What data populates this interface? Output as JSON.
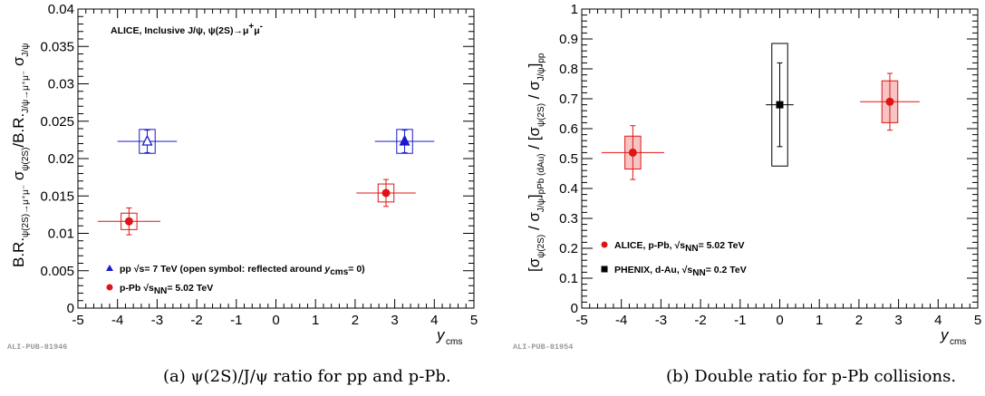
{
  "chart_data": [
    {
      "type": "scatter",
      "title": "ALICE, Inclusive J/ψ, ψ(2S)→μ⁺μ⁻",
      "ylabel": "B.R.ψ(2S)→μ⁺μ⁻ σψ(2S) / B.R.J/ψ→μ⁺μ⁻ σJ/ψ",
      "xlabel": "ycms",
      "xlim": [
        -5,
        5
      ],
      "ylim": [
        0,
        0.04
      ],
      "xticks": [
        "-5",
        "-4",
        "-3",
        "-2",
        "-1",
        "0",
        "1",
        "2",
        "3",
        "4",
        "5"
      ],
      "yticks": [
        "0",
        "0.005",
        "0.01",
        "0.015",
        "0.02",
        "0.025",
        "0.03",
        "0.035",
        "0.04"
      ],
      "series": [
        {
          "name": "pp √s= 7 TeV (open symbol: reflected around ycms= 0)",
          "color": "#1a1acc",
          "marker": "triangle",
          "points": [
            {
              "x": -3.25,
              "y": 0.0223,
              "xerr": 0.75,
              "stat": 0.0015,
              "sys": 0.0016,
              "open": true
            },
            {
              "x": 3.25,
              "y": 0.0223,
              "xerr": 0.75,
              "stat": 0.0015,
              "sys": 0.0016,
              "open": false
            }
          ]
        },
        {
          "name": "p-Pb √sNN= 5.02 TeV",
          "color": "#e01414",
          "marker": "circle",
          "points": [
            {
              "x": -3.71,
              "y": 0.0116,
              "xerr": 0.79,
              "stat": 0.0018,
              "sys": 0.0011,
              "open": false
            },
            {
              "x": 2.78,
              "y": 0.0154,
              "xerr": 0.75,
              "stat": 0.0018,
              "sys": 0.0012,
              "open": false
            }
          ]
        }
      ],
      "legend_position": "bottom-left",
      "tag": "ALI-PUB-81946"
    },
    {
      "type": "scatter",
      "ylabel": "[σψ(2S) / σJ/ψ]pPb (dAu) / [σψ(2S) / σJ/ψ]pp",
      "xlabel": "ycms",
      "xlim": [
        -5,
        5
      ],
      "ylim": [
        0,
        1
      ],
      "xticks": [
        "-5",
        "-4",
        "-3",
        "-2",
        "-1",
        "0",
        "1",
        "2",
        "3",
        "4",
        "5"
      ],
      "yticks": [
        "0",
        "0.1",
        "0.2",
        "0.3",
        "0.4",
        "0.5",
        "0.6",
        "0.7",
        "0.8",
        "0.9",
        "1"
      ],
      "series": [
        {
          "name": "ALICE, p-Pb, √sNN= 5.02 TeV",
          "color": "#e01414",
          "marker": "circle",
          "points": [
            {
              "x": -3.71,
              "y": 0.52,
              "xerr": 0.79,
              "stat": 0.09,
              "sys": 0.055
            },
            {
              "x": 2.78,
              "y": 0.69,
              "xerr": 0.75,
              "stat": 0.095,
              "sys": 0.07
            }
          ]
        },
        {
          "name": "PHENIX, d-Au, √sNN= 0.2 TeV",
          "color": "#000000",
          "marker": "square",
          "points": [
            {
              "x": 0.0,
              "y": 0.68,
              "xerr": 0.35,
              "stat": 0.14,
              "sys": 0.205
            }
          ]
        }
      ],
      "legend_position": "bottom-left",
      "tag": "ALI-PUB-81954"
    }
  ],
  "captions": {
    "a": "(a)   ψ(2S)/J/ψ ratio for pp and p-Pb.",
    "b": "(b)   Double ratio for p-Pb collisions."
  }
}
